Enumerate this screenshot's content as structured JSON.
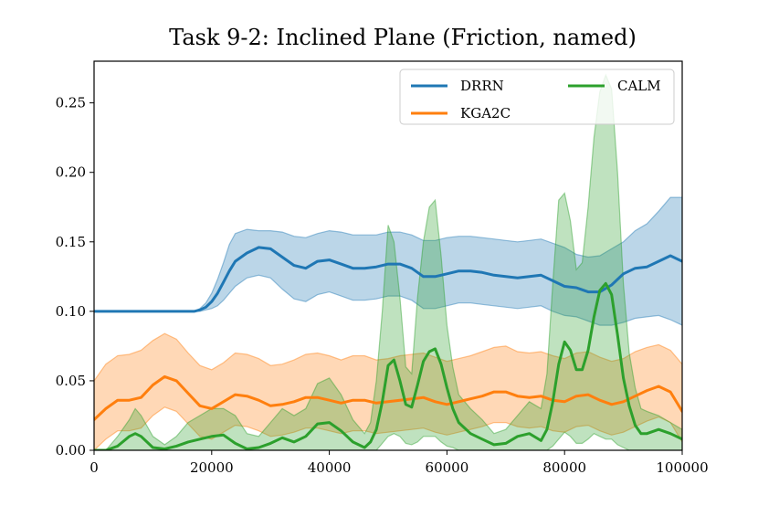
{
  "chart_data": {
    "type": "line",
    "title": "Task 9-2: Inclined Plane (Friction, named)",
    "xlabel": "",
    "ylabel": "",
    "xlim": [
      0,
      100000
    ],
    "ylim": [
      0,
      0.28
    ],
    "xticks": [
      0,
      20000,
      40000,
      60000,
      80000,
      100000
    ],
    "xtick_labels": [
      "0",
      "20000",
      "40000",
      "60000",
      "80000",
      "100000"
    ],
    "yticks": [
      0.0,
      0.05,
      0.1,
      0.15,
      0.2,
      0.25
    ],
    "ytick_labels": [
      "0.00",
      "0.05",
      "0.10",
      "0.15",
      "0.20",
      "0.25"
    ],
    "legend_position": "top-right",
    "grid": false,
    "series": [
      {
        "name": "DRRN",
        "color": "#1f77b4",
        "x": [
          0,
          10000,
          15000,
          17000,
          18000,
          19000,
          20000,
          21000,
          22000,
          23000,
          24000,
          26000,
          28000,
          30000,
          32000,
          34000,
          36000,
          38000,
          40000,
          42000,
          44000,
          46000,
          48000,
          50000,
          52000,
          54000,
          56000,
          58000,
          60000,
          62000,
          64000,
          66000,
          68000,
          70000,
          72000,
          74000,
          76000,
          78000,
          80000,
          82000,
          84000,
          86000,
          88000,
          90000,
          92000,
          94000,
          96000,
          98000,
          100000
        ],
        "y": [
          0.1,
          0.1,
          0.1,
          0.1,
          0.101,
          0.103,
          0.107,
          0.113,
          0.121,
          0.129,
          0.136,
          0.142,
          0.146,
          0.145,
          0.139,
          0.133,
          0.131,
          0.136,
          0.137,
          0.134,
          0.131,
          0.131,
          0.132,
          0.134,
          0.134,
          0.131,
          0.125,
          0.125,
          0.127,
          0.129,
          0.129,
          0.128,
          0.126,
          0.125,
          0.124,
          0.125,
          0.126,
          0.122,
          0.118,
          0.117,
          0.114,
          0.114,
          0.119,
          0.127,
          0.131,
          0.132,
          0.136,
          0.14,
          0.136
        ],
        "lower": [
          0.1,
          0.1,
          0.1,
          0.1,
          0.1,
          0.101,
          0.102,
          0.104,
          0.108,
          0.113,
          0.118,
          0.124,
          0.126,
          0.124,
          0.116,
          0.109,
          0.107,
          0.112,
          0.114,
          0.111,
          0.108,
          0.108,
          0.109,
          0.111,
          0.111,
          0.108,
          0.102,
          0.102,
          0.104,
          0.106,
          0.106,
          0.105,
          0.104,
          0.103,
          0.102,
          0.103,
          0.104,
          0.1,
          0.097,
          0.096,
          0.093,
          0.09,
          0.09,
          0.092,
          0.095,
          0.096,
          0.097,
          0.094,
          0.09
        ],
        "upper": [
          0.1,
          0.1,
          0.1,
          0.1,
          0.102,
          0.106,
          0.113,
          0.123,
          0.135,
          0.148,
          0.156,
          0.159,
          0.158,
          0.158,
          0.157,
          0.154,
          0.153,
          0.156,
          0.158,
          0.157,
          0.155,
          0.155,
          0.155,
          0.157,
          0.157,
          0.155,
          0.151,
          0.151,
          0.153,
          0.154,
          0.154,
          0.153,
          0.152,
          0.151,
          0.15,
          0.151,
          0.152,
          0.149,
          0.146,
          0.141,
          0.139,
          0.14,
          0.145,
          0.15,
          0.158,
          0.163,
          0.172,
          0.182,
          0.182
        ]
      },
      {
        "name": "KGA2C",
        "color": "#ff7f0e",
        "x": [
          0,
          2000,
          4000,
          6000,
          8000,
          10000,
          12000,
          14000,
          16000,
          18000,
          20000,
          22000,
          24000,
          26000,
          28000,
          30000,
          32000,
          34000,
          36000,
          38000,
          40000,
          42000,
          44000,
          46000,
          48000,
          50000,
          52000,
          54000,
          56000,
          58000,
          60000,
          62000,
          64000,
          66000,
          68000,
          70000,
          72000,
          74000,
          76000,
          78000,
          80000,
          82000,
          84000,
          86000,
          88000,
          90000,
          92000,
          94000,
          96000,
          98000,
          100000
        ],
        "y": [
          0.022,
          0.03,
          0.036,
          0.036,
          0.038,
          0.047,
          0.053,
          0.05,
          0.041,
          0.032,
          0.03,
          0.035,
          0.04,
          0.039,
          0.036,
          0.032,
          0.033,
          0.035,
          0.038,
          0.038,
          0.036,
          0.034,
          0.036,
          0.036,
          0.034,
          0.035,
          0.036,
          0.037,
          0.038,
          0.035,
          0.033,
          0.035,
          0.037,
          0.039,
          0.042,
          0.042,
          0.039,
          0.038,
          0.039,
          0.036,
          0.035,
          0.039,
          0.04,
          0.036,
          0.033,
          0.035,
          0.039,
          0.043,
          0.046,
          0.042,
          0.028
        ],
        "lower": [
          0.0,
          0.008,
          0.014,
          0.014,
          0.016,
          0.025,
          0.031,
          0.028,
          0.019,
          0.01,
          0.008,
          0.013,
          0.018,
          0.017,
          0.014,
          0.01,
          0.011,
          0.013,
          0.016,
          0.016,
          0.014,
          0.012,
          0.014,
          0.014,
          0.012,
          0.013,
          0.014,
          0.015,
          0.016,
          0.013,
          0.011,
          0.013,
          0.015,
          0.017,
          0.02,
          0.02,
          0.017,
          0.016,
          0.017,
          0.014,
          0.013,
          0.017,
          0.018,
          0.014,
          0.011,
          0.013,
          0.017,
          0.021,
          0.024,
          0.02,
          0.006
        ],
        "upper": [
          0.05,
          0.062,
          0.068,
          0.069,
          0.072,
          0.079,
          0.084,
          0.08,
          0.07,
          0.061,
          0.058,
          0.063,
          0.07,
          0.069,
          0.066,
          0.061,
          0.062,
          0.065,
          0.069,
          0.07,
          0.068,
          0.065,
          0.068,
          0.068,
          0.065,
          0.066,
          0.068,
          0.069,
          0.07,
          0.067,
          0.064,
          0.066,
          0.068,
          0.071,
          0.074,
          0.075,
          0.071,
          0.07,
          0.071,
          0.068,
          0.066,
          0.07,
          0.071,
          0.067,
          0.064,
          0.066,
          0.071,
          0.074,
          0.076,
          0.072,
          0.062
        ]
      },
      {
        "name": "CALM",
        "color": "#2ca02c",
        "x": [
          0,
          2000,
          4000,
          6000,
          7000,
          8000,
          10000,
          12000,
          14000,
          16000,
          18000,
          20000,
          22000,
          24000,
          26000,
          28000,
          30000,
          32000,
          34000,
          36000,
          38000,
          40000,
          42000,
          44000,
          46000,
          47000,
          48000,
          49000,
          50000,
          51000,
          52000,
          53000,
          54000,
          55000,
          56000,
          57000,
          58000,
          59000,
          60000,
          61000,
          62000,
          64000,
          66000,
          68000,
          70000,
          72000,
          74000,
          76000,
          77000,
          78000,
          79000,
          80000,
          81000,
          82000,
          83000,
          84000,
          85000,
          86000,
          87000,
          88000,
          89000,
          90000,
          91000,
          92000,
          93000,
          94000,
          96000,
          98000,
          100000
        ],
        "y": [
          0.0,
          0.0,
          0.003,
          0.01,
          0.012,
          0.01,
          0.002,
          0.001,
          0.003,
          0.006,
          0.008,
          0.01,
          0.011,
          0.005,
          0.001,
          0.002,
          0.005,
          0.009,
          0.006,
          0.01,
          0.019,
          0.02,
          0.014,
          0.006,
          0.002,
          0.006,
          0.015,
          0.035,
          0.061,
          0.065,
          0.05,
          0.033,
          0.031,
          0.047,
          0.064,
          0.071,
          0.073,
          0.062,
          0.045,
          0.03,
          0.02,
          0.012,
          0.008,
          0.004,
          0.005,
          0.01,
          0.012,
          0.007,
          0.015,
          0.035,
          0.062,
          0.078,
          0.072,
          0.058,
          0.058,
          0.072,
          0.096,
          0.115,
          0.12,
          0.112,
          0.083,
          0.052,
          0.032,
          0.018,
          0.012,
          0.012,
          0.015,
          0.012,
          0.008
        ],
        "lower": [
          0.0,
          0.0,
          0.0,
          0.0,
          0.0,
          0.0,
          0.0,
          0.0,
          0.0,
          0.0,
          0.0,
          0.0,
          0.0,
          0.0,
          0.0,
          0.0,
          0.0,
          0.0,
          0.0,
          0.0,
          0.0,
          0.0,
          0.0,
          0.0,
          0.0,
          0.0,
          0.0,
          0.005,
          0.01,
          0.012,
          0.01,
          0.005,
          0.004,
          0.006,
          0.01,
          0.01,
          0.01,
          0.006,
          0.003,
          0.002,
          0.0,
          0.0,
          0.0,
          0.0,
          0.0,
          0.0,
          0.0,
          0.0,
          0.0,
          0.003,
          0.008,
          0.013,
          0.01,
          0.005,
          0.005,
          0.008,
          0.012,
          0.01,
          0.008,
          0.008,
          0.004,
          0.002,
          0.0,
          0.0,
          0.0,
          0.0,
          0.0,
          0.0,
          0.0
        ],
        "upper": [
          0.0,
          0.0,
          0.01,
          0.022,
          0.03,
          0.025,
          0.01,
          0.004,
          0.01,
          0.02,
          0.025,
          0.03,
          0.03,
          0.025,
          0.012,
          0.01,
          0.02,
          0.03,
          0.025,
          0.03,
          0.048,
          0.052,
          0.04,
          0.022,
          0.012,
          0.02,
          0.05,
          0.1,
          0.162,
          0.15,
          0.11,
          0.06,
          0.055,
          0.11,
          0.15,
          0.175,
          0.18,
          0.14,
          0.09,
          0.06,
          0.04,
          0.03,
          0.022,
          0.012,
          0.015,
          0.025,
          0.035,
          0.03,
          0.055,
          0.12,
          0.18,
          0.185,
          0.165,
          0.13,
          0.135,
          0.175,
          0.225,
          0.258,
          0.27,
          0.26,
          0.2,
          0.12,
          0.07,
          0.045,
          0.03,
          0.028,
          0.025,
          0.02,
          0.015
        ]
      }
    ]
  }
}
